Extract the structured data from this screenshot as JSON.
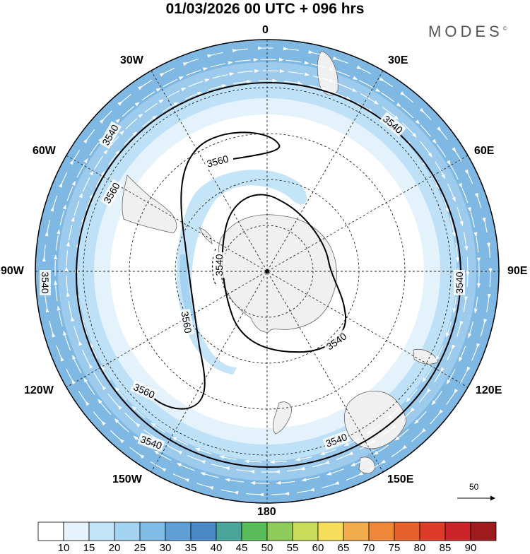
{
  "title": "01/03/2026  00 UTC  + 096 hrs",
  "brand": "MODES",
  "brand_mark": "©",
  "longitude_labels": {
    "top": "0",
    "top_right": "30E",
    "upper_right": "60E",
    "right": "90E",
    "lower_right": "120E",
    "bottom_right": "150E",
    "bottom": "180",
    "bottom_left": "150W",
    "lower_left": "120W",
    "left": "90W",
    "upper_left": "60W",
    "top_left": "30W"
  },
  "contour_labels": [
    "3540",
    "3560"
  ],
  "reference_vector": {
    "label": "50"
  },
  "colorbar": {
    "labels": [
      "10",
      "15",
      "20",
      "25",
      "30",
      "35",
      "40",
      "45",
      "50",
      "55",
      "60",
      "65",
      "70",
      "75",
      "80",
      "85",
      "90"
    ],
    "colors": [
      "#ffffff",
      "#e6f3fc",
      "#c4e5f8",
      "#a3d3f1",
      "#80bde6",
      "#5f9fd5",
      "#4b88c8",
      "#49a59a",
      "#58bc5a",
      "#8fcb59",
      "#c8dc5a",
      "#f4de5c",
      "#f4ad4c",
      "#ee8738",
      "#e6602c",
      "#dd3c2a",
      "#c92529",
      "#9e1b1d"
    ]
  },
  "map": {
    "projection": "south polar stereographic",
    "field": "wind speed shaded, 500 hPa geopotential height contours, wind vectors",
    "land_color": "#f0f0f0"
  }
}
